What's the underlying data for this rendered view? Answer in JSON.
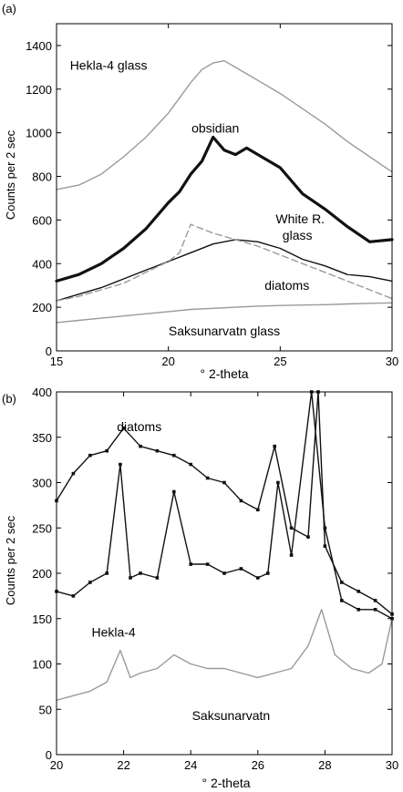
{
  "figure": {
    "panels": [
      {
        "panel_label": "(a)",
        "xlabel": "° 2-theta",
        "ylabel": "Counts per 2 sec",
        "xlim": [
          15,
          30
        ],
        "ylim": [
          0,
          1500
        ],
        "xticks": [
          15,
          20,
          25,
          30
        ],
        "yticks": [
          0,
          200,
          400,
          600,
          800,
          1000,
          1200,
          1400
        ]
      },
      {
        "panel_label": "(b)",
        "xlabel": "° 2-theta",
        "ylabel": "Counts per 2 sec",
        "xlim": [
          20,
          30
        ],
        "ylim": [
          0,
          400
        ],
        "xticks": [
          20,
          22,
          24,
          26,
          28,
          30
        ],
        "yticks": [
          0,
          50,
          100,
          150,
          200,
          250,
          300,
          350,
          400
        ]
      }
    ],
    "colors": {
      "black": "#111111",
      "gray": "#9a9a9a"
    }
  },
  "chart_data": [
    {
      "type": "line",
      "xlabel": "° 2-theta",
      "ylabel": "Counts per 2 sec",
      "xlim": [
        15,
        30
      ],
      "ylim": [
        0,
        1500
      ],
      "grid": false,
      "series": [
        {
          "name": "Hekla-4 glass",
          "color": "#9a9a9a",
          "x": [
            15,
            16,
            17,
            18,
            19,
            20,
            20.5,
            21,
            21.5,
            22,
            22.5,
            23,
            23.5,
            24,
            25,
            26,
            27,
            28,
            29,
            30
          ],
          "y": [
            740,
            760,
            810,
            890,
            980,
            1090,
            1160,
            1230,
            1290,
            1320,
            1330,
            1300,
            1270,
            1240,
            1180,
            1110,
            1040,
            960,
            890,
            820
          ]
        },
        {
          "name": "obsidian",
          "color": "#111111",
          "x": [
            15,
            16,
            17,
            18,
            19,
            20,
            20.5,
            21,
            21.5,
            22,
            22.5,
            23,
            23.5,
            24,
            25,
            26,
            27,
            28,
            29,
            30
          ],
          "y": [
            320,
            350,
            400,
            470,
            560,
            680,
            730,
            810,
            870,
            980,
            920,
            900,
            930,
            900,
            840,
            720,
            650,
            570,
            500,
            510
          ]
        },
        {
          "name": "White R. glass",
          "color": "#111111",
          "x": [
            15,
            16,
            17,
            18,
            19,
            20,
            21,
            22,
            23,
            24,
            25,
            26,
            27,
            28,
            29,
            30
          ],
          "y": [
            230,
            260,
            290,
            330,
            370,
            410,
            450,
            490,
            510,
            500,
            470,
            420,
            390,
            350,
            340,
            320
          ]
        },
        {
          "name": "diatoms",
          "color": "#9a9a9a",
          "x": [
            15,
            16,
            17,
            18,
            19,
            20,
            20.5,
            21,
            22,
            23,
            24,
            25,
            26,
            27,
            28,
            29,
            30
          ],
          "y": [
            230,
            250,
            280,
            310,
            360,
            410,
            450,
            580,
            540,
            510,
            480,
            440,
            400,
            360,
            320,
            280,
            240
          ]
        },
        {
          "name": "Saksunarvatn glass",
          "color": "#9a9a9a",
          "x": [
            15,
            16,
            17,
            18,
            19,
            20,
            21,
            22,
            23,
            24,
            25,
            26,
            27,
            28,
            29,
            30
          ],
          "y": [
            130,
            140,
            150,
            160,
            170,
            180,
            190,
            195,
            200,
            205,
            208,
            210,
            212,
            215,
            218,
            220
          ]
        }
      ]
    },
    {
      "type": "line",
      "xlabel": "° 2-theta",
      "ylabel": "Counts per 2 sec",
      "xlim": [
        20,
        30
      ],
      "ylim": [
        0,
        400
      ],
      "grid": false,
      "series": [
        {
          "name": "diatoms",
          "color": "#111111",
          "x": [
            20,
            20.5,
            21,
            21.5,
            22,
            22.5,
            23,
            23.5,
            24,
            24.5,
            25,
            25.5,
            26,
            26.5,
            27,
            27.5,
            27.8,
            28,
            28.5,
            29,
            29.5,
            30
          ],
          "y": [
            280,
            310,
            330,
            335,
            360,
            340,
            335,
            330,
            320,
            305,
            300,
            280,
            270,
            340,
            250,
            240,
            400,
            230,
            190,
            180,
            170,
            155
          ]
        },
        {
          "name": "Hekla-4",
          "color": "#111111",
          "x": [
            20,
            20.5,
            21,
            21.5,
            21.9,
            22.2,
            22.5,
            23,
            23.5,
            24,
            24.5,
            25,
            25.5,
            26,
            26.3,
            26.6,
            27,
            27.6,
            28,
            28.5,
            29,
            29.5,
            30
          ],
          "y": [
            180,
            175,
            190,
            200,
            320,
            195,
            200,
            195,
            290,
            210,
            210,
            200,
            205,
            195,
            200,
            300,
            220,
            400,
            250,
            170,
            160,
            160,
            150
          ]
        },
        {
          "name": "Saksunarvatn",
          "color": "#9a9a9a",
          "x": [
            20,
            20.5,
            21,
            21.5,
            21.9,
            22.2,
            22.5,
            23,
            23.5,
            24,
            24.5,
            25,
            25.5,
            26,
            26.5,
            27,
            27.5,
            27.9,
            28.3,
            28.8,
            29.3,
            29.7,
            30
          ],
          "y": [
            60,
            65,
            70,
            80,
            115,
            85,
            90,
            95,
            110,
            100,
            95,
            95,
            90,
            85,
            90,
            95,
            120,
            160,
            110,
            95,
            90,
            100,
            150
          ]
        }
      ]
    }
  ],
  "annotations": [
    {
      "panel": 0,
      "text": "Hekla-4 glass",
      "x": 15.6,
      "y": 1290,
      "anchor": "start"
    },
    {
      "panel": 0,
      "text": "obsidian",
      "x": 22.1,
      "y": 1000,
      "anchor": "middle"
    },
    {
      "panel": 0,
      "text": "White R.",
      "x": 24.8,
      "y": 585,
      "anchor": "start"
    },
    {
      "panel": 0,
      "text": "glass",
      "x": 25.1,
      "y": 510,
      "anchor": "start"
    },
    {
      "panel": 0,
      "text": "diatoms",
      "x": 24.3,
      "y": 280,
      "anchor": "start"
    },
    {
      "panel": 0,
      "text": "Saksunarvatn glass",
      "x": 22.5,
      "y": 72,
      "anchor": "middle"
    },
    {
      "panel": 1,
      "text": "diatoms",
      "x": 21.8,
      "y": 357,
      "anchor": "start"
    },
    {
      "panel": 1,
      "text": "Hekla-4",
      "x": 21.7,
      "y": 130,
      "anchor": "middle"
    },
    {
      "panel": 1,
      "text": "Saksunarvatn",
      "x": 25.2,
      "y": 38,
      "anchor": "middle"
    }
  ]
}
